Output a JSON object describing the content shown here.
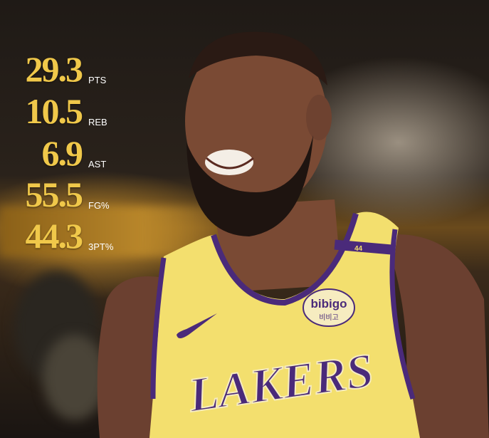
{
  "stats": [
    {
      "value": "29.3",
      "label": "PTS"
    },
    {
      "value": "10.5",
      "label": "REB"
    },
    {
      "value": "6.9",
      "label": "AST"
    },
    {
      "value": "55.5",
      "label": "FG%"
    },
    {
      "value": "44.3",
      "label": "3PT%"
    }
  ],
  "jersey": {
    "team": "LAKERS",
    "sponsor": "bibigo",
    "sponsor_korean": "비비고",
    "strap_number": "44"
  },
  "colors": {
    "stat_gold": "#f0c84a",
    "jersey_yellow": "#f3df6e",
    "jersey_purple": "#4a2a7a"
  }
}
